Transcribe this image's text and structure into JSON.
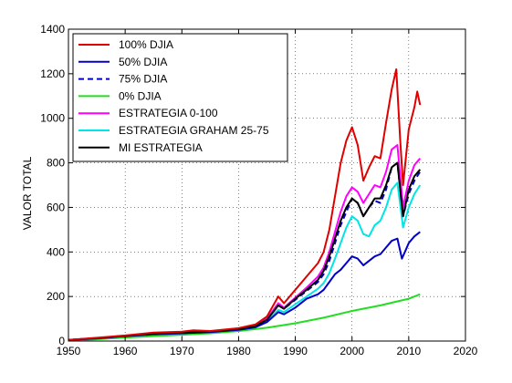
{
  "chart_data": {
    "type": "line",
    "title": "",
    "xlabel": "",
    "ylabel": "VALOR TOTAL",
    "xlim": [
      1950,
      2020
    ],
    "ylim": [
      0,
      1400
    ],
    "x_ticks": [
      1950,
      1960,
      1970,
      1980,
      1990,
      2000,
      2010,
      2020
    ],
    "y_ticks": [
      0,
      200,
      400,
      600,
      800,
      1000,
      1200,
      1400
    ],
    "grid": true,
    "legend_position": "top-left",
    "series": [
      {
        "name": "100% DJIA",
        "color": "#e00000",
        "dash": false,
        "x": [
          1950,
          1955,
          1960,
          1965,
          1970,
          1972,
          1975,
          1980,
          1983,
          1985,
          1987,
          1988,
          1990,
          1992,
          1994,
          1995,
          1996,
          1997,
          1998,
          1999,
          2000,
          2001,
          2002,
          2003,
          2004,
          2005,
          2006,
          2007,
          2007.8,
          2008.5,
          2009,
          2010,
          2011,
          2011.5,
          2012
        ],
        "y": [
          5,
          15,
          25,
          38,
          42,
          48,
          45,
          58,
          75,
          110,
          200,
          170,
          230,
          290,
          350,
          400,
          500,
          650,
          800,
          900,
          960,
          880,
          720,
          780,
          830,
          820,
          980,
          1130,
          1220,
          900,
          700,
          950,
          1050,
          1120,
          1060
        ]
      },
      {
        "name": "50% DJIA",
        "color": "#0000c8",
        "dash": false,
        "x": [
          1950,
          1955,
          1960,
          1965,
          1970,
          1975,
          1980,
          1983,
          1985,
          1987,
          1988,
          1990,
          1992,
          1994,
          1995,
          1996,
          1997,
          1998,
          1999,
          2000,
          2001,
          2002,
          2003,
          2004,
          2005,
          2006,
          2007,
          2008,
          2008.8,
          2009.5,
          2010,
          2011,
          2012
        ],
        "y": [
          5,
          12,
          22,
          30,
          35,
          40,
          50,
          62,
          85,
          130,
          120,
          150,
          190,
          210,
          230,
          265,
          300,
          320,
          350,
          380,
          370,
          340,
          360,
          380,
          390,
          420,
          450,
          460,
          370,
          410,
          440,
          470,
          490
        ]
      },
      {
        "name": "75% DJIA",
        "color": "#0000c8",
        "dash": true,
        "x": [
          1950,
          1955,
          1960,
          1965,
          1970,
          1975,
          1980,
          1983,
          1985,
          1987,
          1988,
          1990,
          1992,
          1994,
          1995,
          1996,
          1997,
          1998,
          1999,
          2000,
          2001,
          2002,
          2003,
          2004,
          2005,
          2006,
          2007,
          2008,
          2009,
          2010,
          2011,
          2012
        ],
        "y": [
          5,
          13,
          23,
          33,
          38,
          43,
          54,
          68,
          95,
          160,
          145,
          185,
          225,
          265,
          300,
          360,
          440,
          520,
          580,
          640,
          620,
          560,
          600,
          630,
          620,
          680,
          780,
          800,
          560,
          660,
          720,
          760
        ]
      },
      {
        "name": "0% DJIA",
        "color": "#22dd22",
        "dash": false,
        "x": [
          1950,
          1955,
          1960,
          1965,
          1970,
          1975,
          1980,
          1985,
          1990,
          1995,
          2000,
          2005,
          2010,
          2012
        ],
        "y": [
          3,
          8,
          16,
          22,
          28,
          35,
          45,
          60,
          80,
          105,
          135,
          160,
          190,
          210
        ]
      },
      {
        "name": "ESTRATEGIA 0-100",
        "color": "#ff00ff",
        "dash": false,
        "x": [
          1950,
          1955,
          1960,
          1965,
          1970,
          1975,
          1980,
          1983,
          1985,
          1987,
          1988,
          1990,
          1992,
          1994,
          1995,
          1996,
          1997,
          1998,
          1999,
          2000,
          2001,
          2002,
          2003,
          2004,
          2005,
          2006,
          2007,
          2008,
          2009,
          2010,
          2011,
          2012
        ],
        "y": [
          5,
          13,
          24,
          34,
          39,
          44,
          56,
          70,
          100,
          170,
          150,
          195,
          240,
          290,
          330,
          400,
          490,
          580,
          650,
          690,
          670,
          620,
          660,
          700,
          690,
          760,
          860,
          880,
          600,
          720,
          790,
          820
        ]
      },
      {
        "name": "ESTRATEGIA GRAHAM 25-75",
        "color": "#00e5e5",
        "dash": false,
        "x": [
          1950,
          1955,
          1960,
          1965,
          1970,
          1975,
          1980,
          1983,
          1985,
          1987,
          1988,
          1990,
          1992,
          1994,
          1995,
          1996,
          1997,
          1998,
          1999,
          2000,
          2001,
          2002,
          2003,
          2004,
          2005,
          2006,
          2007,
          2008,
          2009,
          2010,
          2011,
          2012
        ],
        "y": [
          5,
          12,
          22,
          32,
          36,
          41,
          52,
          64,
          88,
          140,
          130,
          165,
          200,
          235,
          260,
          305,
          370,
          440,
          510,
          560,
          540,
          480,
          470,
          520,
          540,
          600,
          680,
          710,
          510,
          600,
          660,
          700
        ]
      },
      {
        "name": "MI ESTRATEGIA",
        "color": "#000000",
        "dash": false,
        "x": [
          1950,
          1955,
          1960,
          1965,
          1970,
          1975,
          1980,
          1983,
          1985,
          1987,
          1988,
          1990,
          1992,
          1994,
          1995,
          1996,
          1997,
          1998,
          1999,
          2000,
          2001,
          2002,
          2003,
          2004,
          2005,
          2006,
          2007,
          2008,
          2009,
          2010,
          2011,
          2012
        ],
        "y": [
          5,
          13,
          23,
          33,
          38,
          43,
          54,
          68,
          95,
          160,
          145,
          190,
          230,
          275,
          315,
          380,
          460,
          540,
          600,
          640,
          620,
          560,
          600,
          640,
          640,
          700,
          780,
          800,
          560,
          680,
          740,
          770
        ]
      }
    ]
  }
}
